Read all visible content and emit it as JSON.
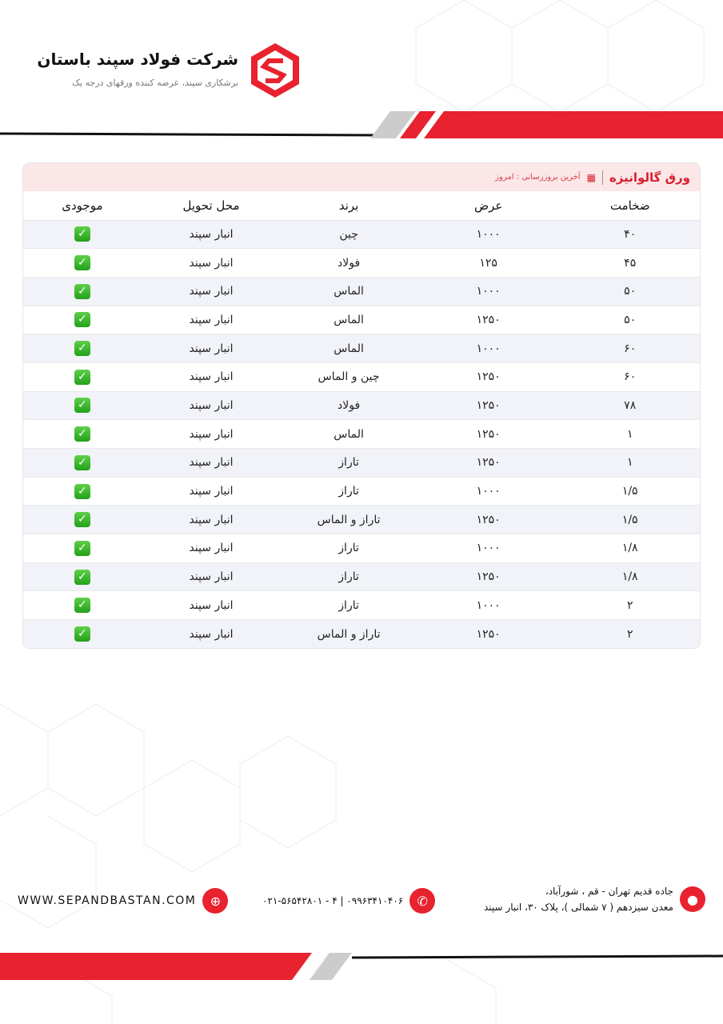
{
  "header": {
    "company": "شرکت فولاد سپند باستان",
    "tagline": "برشکاری سپند، عرضه کننده ورقهای درجه یک",
    "logo_letter": "S"
  },
  "colors": {
    "accent": "#e8222e",
    "row_alt": "#f1f3f9",
    "title_bar": "#fbe6e8"
  },
  "table": {
    "title": "ورق گالوانیزه",
    "updated": "آخرین بروزرسانی : امروز",
    "columns": [
      "ضخامت",
      "عرض",
      "برند",
      "محل تحویل",
      "موجودی"
    ],
    "rows": [
      [
        "۴۰",
        "۱۰۰۰",
        "چین",
        "انبار سپند",
        "available"
      ],
      [
        "۴۵",
        "۱۲۵",
        "فولاد",
        "انبار سپند",
        "available"
      ],
      [
        "۵۰",
        "۱۰۰۰",
        "الماس",
        "انبار سپند",
        "available"
      ],
      [
        "۵۰",
        "۱۲۵۰",
        "الماس",
        "انبار سپند",
        "available"
      ],
      [
        "۶۰",
        "۱۰۰۰",
        "الماس",
        "انبار سپند",
        "available"
      ],
      [
        "۶۰",
        "۱۲۵۰",
        "چین و الماس",
        "انبار سپند",
        "available"
      ],
      [
        "۷۸",
        "۱۲۵۰",
        "فولاد",
        "انبار سپند",
        "available"
      ],
      [
        "۱",
        "۱۲۵۰",
        "الماس",
        "انبار سپند",
        "available"
      ],
      [
        "۱",
        "۱۲۵۰",
        "تاراز",
        "انبار سپند",
        "available"
      ],
      [
        "۱/۵",
        "۱۰۰۰",
        "تاراز",
        "انبار سپند",
        "available"
      ],
      [
        "۱/۵",
        "۱۲۵۰",
        "تاراز و الماس",
        "انبار سپند",
        "available"
      ],
      [
        "۱/۸",
        "۱۰۰۰",
        "تاراز",
        "انبار سپند",
        "available"
      ],
      [
        "۱/۸",
        "۱۲۵۰",
        "تاراز",
        "انبار سپند",
        "available"
      ],
      [
        "۲",
        "۱۰۰۰",
        "تاراز",
        "انبار سپند",
        "available"
      ],
      [
        "۲",
        "۱۲۵۰",
        "تاراز و الماس",
        "انبار سپند",
        "available"
      ]
    ]
  },
  "footer": {
    "website": "WWW.SEPANDBASTAN.COM",
    "phone": "۰۲۱-۵۶۵۴۲۸۰۱ - ۴ | ۰۹۹۶۳۴۱۰۴۰۶",
    "address_line1": "جاده قدیم تهران - قم ، شورآباد،",
    "address_line2": "معدن سیزدهم ( ۷ شمالی )، پلاک ۳۰، انبار سپند"
  }
}
